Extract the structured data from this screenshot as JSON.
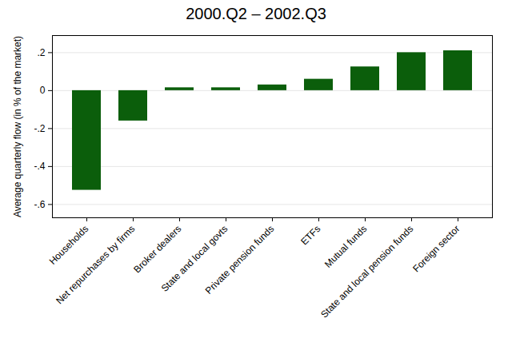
{
  "chart_data": {
    "type": "bar",
    "title": "2000.Q2 – 2002.Q3",
    "y_label": "Average quarterly flow (in % of the market)",
    "categories": [
      "Households",
      "Net repurchases by firms",
      "Broker dealers",
      "State and local govts",
      "Private pension funds",
      "ETFs",
      "Mutual funds",
      "State and local pension funds",
      "Foreign sector"
    ],
    "values": [
      -0.525,
      -0.16,
      0.015,
      0.015,
      0.03,
      0.06,
      0.125,
      0.2,
      0.21
    ],
    "color": "#0b5e0b",
    "ylim": [
      -0.67,
      0.29
    ],
    "yticks": [
      {
        "value": -0.6,
        "label": "-.6"
      },
      {
        "value": -0.4,
        "label": "-.4"
      },
      {
        "value": -0.2,
        "label": "-.2"
      },
      0,
      {
        "value": 0.2,
        "label": ".2"
      }
    ],
    "grid": true
  }
}
